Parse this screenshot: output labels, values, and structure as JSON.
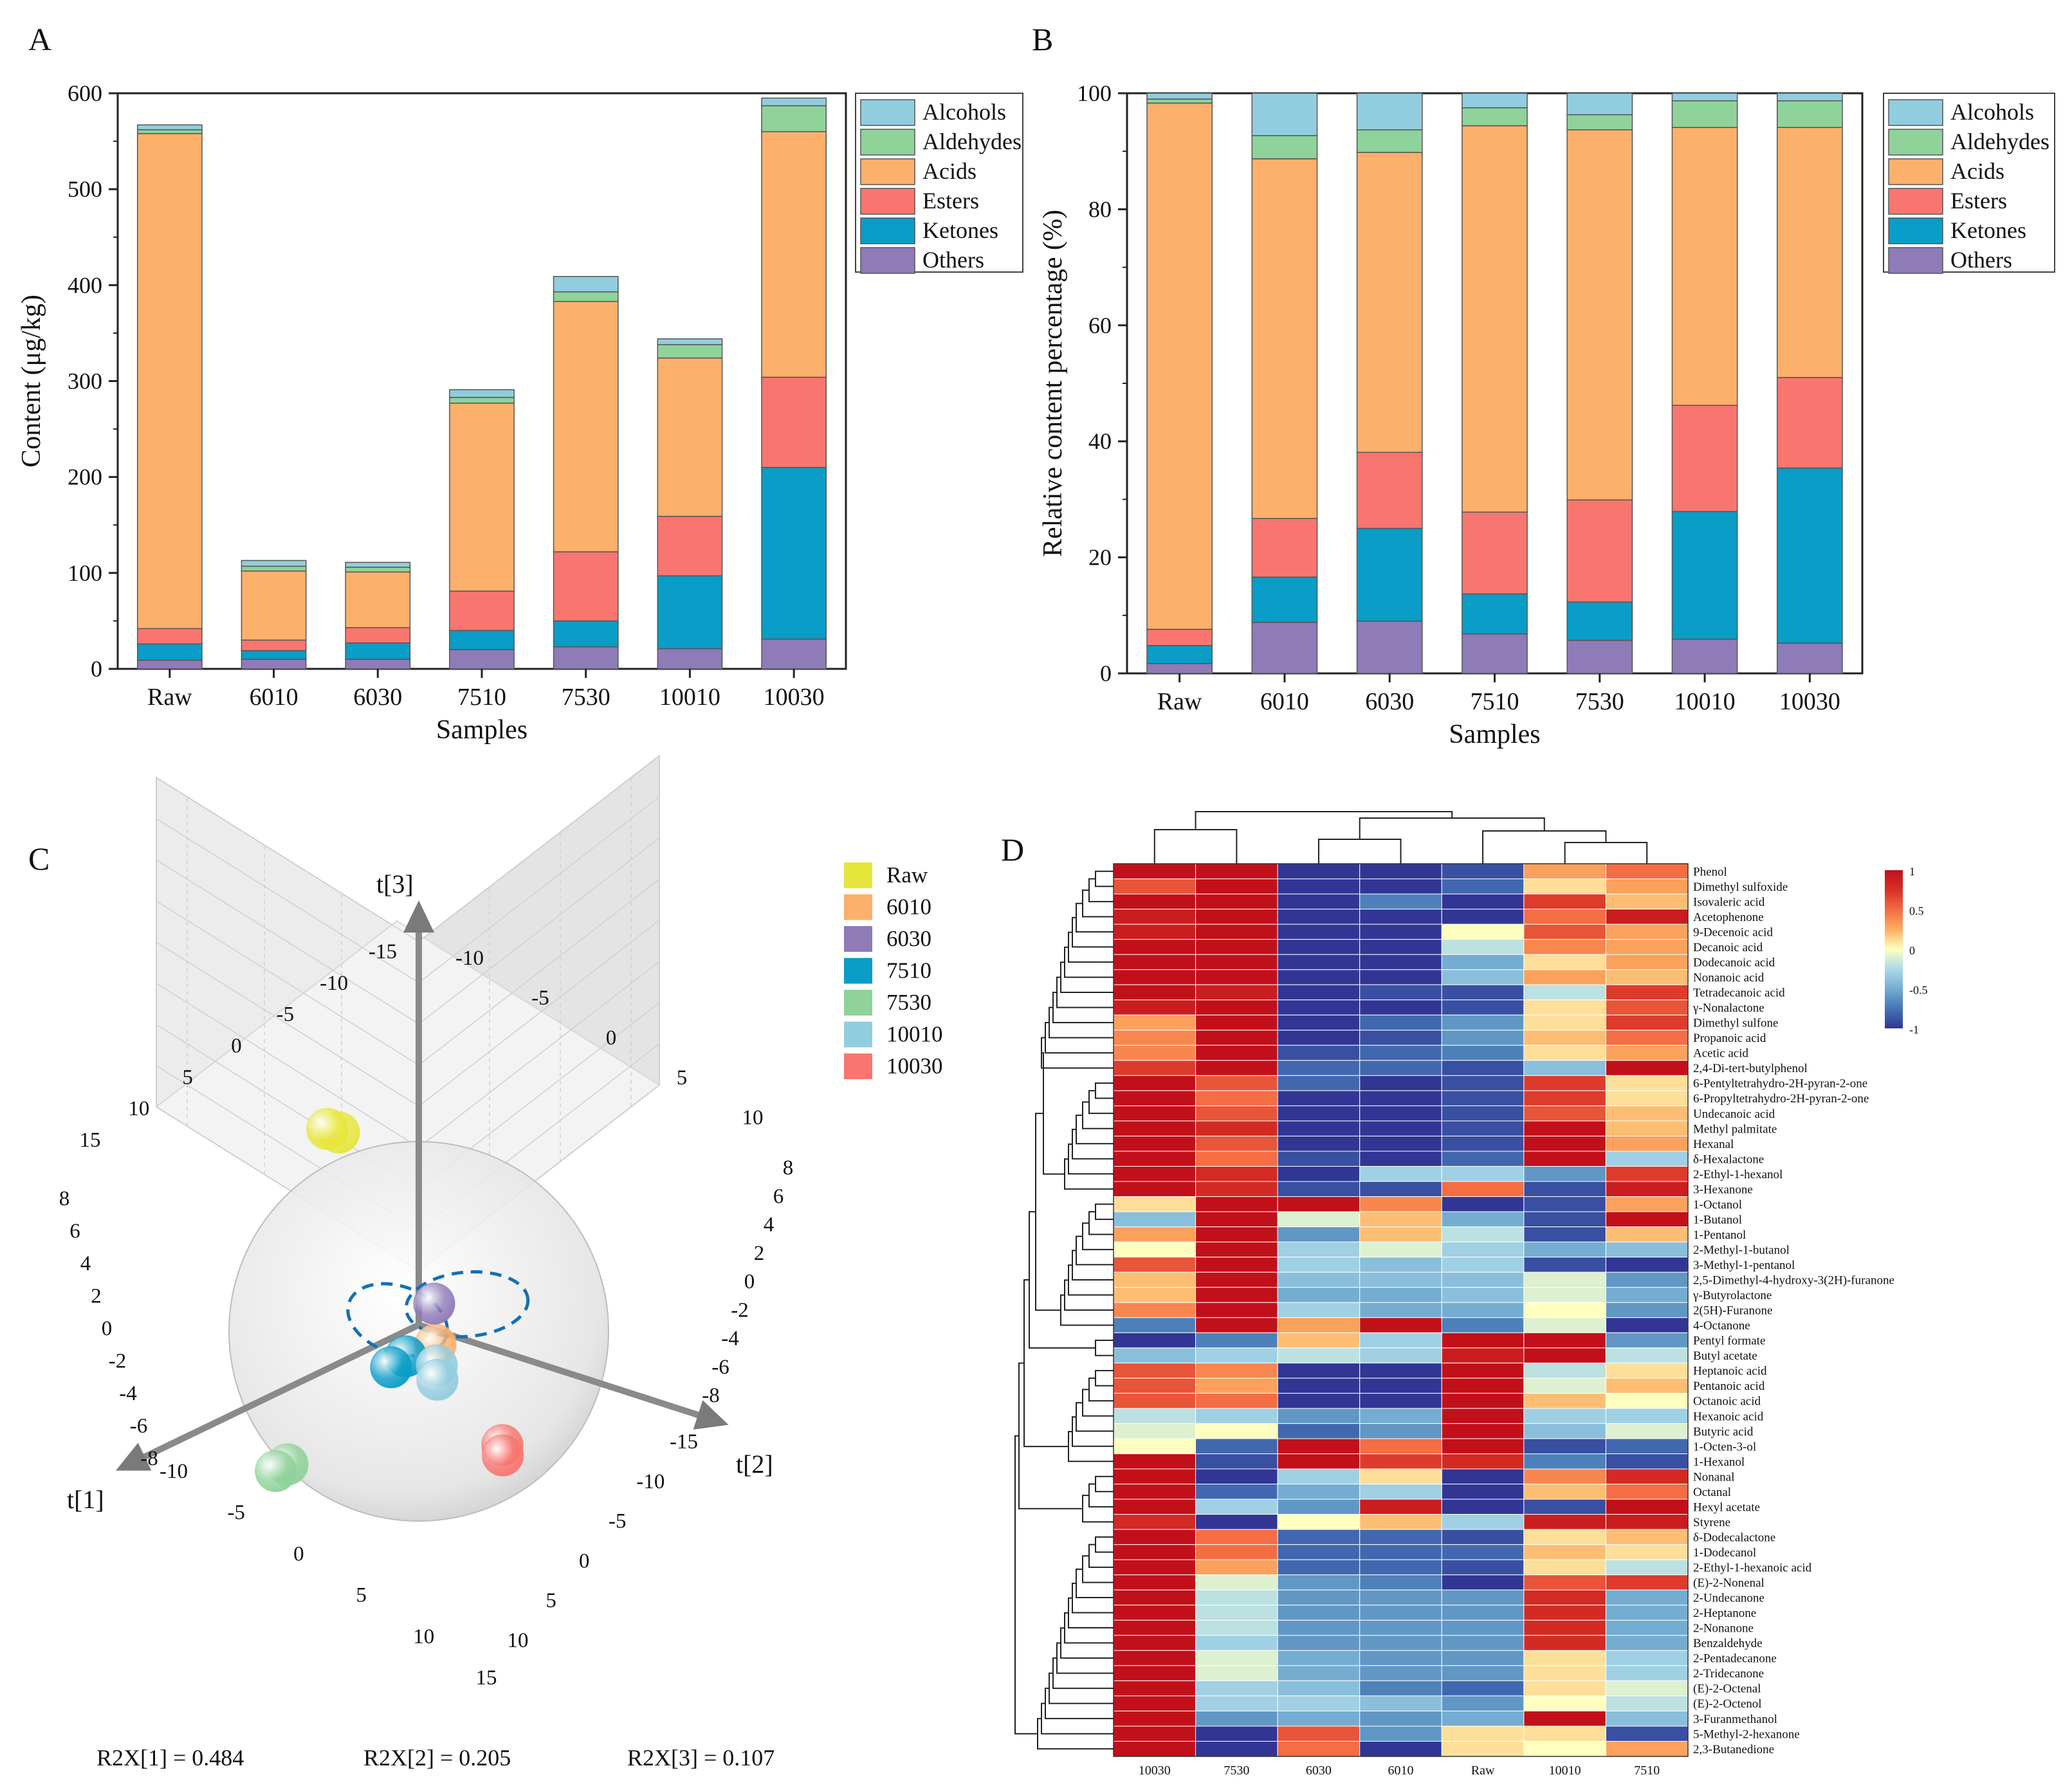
{
  "colors": {
    "Alcohols": "#92cddf",
    "Aldehydes": "#8fd29a",
    "Acids": "#fdb06b",
    "Esters": "#f97670",
    "Ketones": "#0a9dc7",
    "Others": "#8e7bb8"
  },
  "panel_labels": {
    "a": "A",
    "b": "B",
    "c": "C",
    "d": "D"
  },
  "chart_data": [
    {
      "type": "bar",
      "stacked": true,
      "panel": "A",
      "categories": [
        "Raw",
        "6010",
        "6030",
        "7510",
        "7530",
        "10010",
        "10030"
      ],
      "series": [
        {
          "name": "Others",
          "values": [
            9,
            10,
            10,
            20,
            23,
            21,
            31
          ]
        },
        {
          "name": "Ketones",
          "values": [
            17,
            9,
            17,
            20,
            27,
            76,
            179
          ]
        },
        {
          "name": "Esters",
          "values": [
            16,
            11,
            16,
            41,
            72,
            62,
            94
          ]
        },
        {
          "name": "Acids",
          "values": [
            516,
            72,
            58,
            196,
            261,
            165,
            256
          ]
        },
        {
          "name": "Aldehydes",
          "values": [
            4,
            5,
            5,
            6,
            10,
            14,
            27
          ]
        },
        {
          "name": "Alcohols",
          "values": [
            5,
            6,
            5,
            8,
            16,
            6,
            8
          ]
        }
      ],
      "legend_order": [
        "Alcohols",
        "Aldehydes",
        "Acids",
        "Esters",
        "Ketones",
        "Others"
      ],
      "title": "",
      "xlabel": "Samples",
      "ylabel": "Content (μg/kg)",
      "ylim": [
        0,
        600
      ],
      "yticks": [
        0,
        100,
        200,
        300,
        400,
        500,
        600
      ],
      "ytick_labels": [
        "0",
        "100",
        "200",
        "300",
        "400",
        "500",
        "600"
      ],
      "legend_position": "top-right"
    },
    {
      "type": "bar",
      "stacked": true,
      "panel": "B",
      "categories": [
        "Raw",
        "6010",
        "6030",
        "7510",
        "7530",
        "10010",
        "10030"
      ],
      "series": [
        {
          "name": "Others",
          "values": [
            1.7,
            8.8,
            9.0,
            6.8,
            5.7,
            5.9,
            5.2
          ]
        },
        {
          "name": "Ketones",
          "values": [
            3.1,
            7.8,
            16.0,
            6.9,
            6.6,
            22.0,
            30.2
          ]
        },
        {
          "name": "Esters",
          "values": [
            2.8,
            10.1,
            13.1,
            14.1,
            17.6,
            18.3,
            15.6
          ]
        },
        {
          "name": "Acids",
          "values": [
            90.7,
            62.0,
            51.7,
            66.6,
            63.8,
            47.9,
            43.1
          ]
        },
        {
          "name": "Aldehydes",
          "values": [
            0.7,
            4.0,
            3.9,
            3.1,
            2.6,
            4.6,
            4.6
          ]
        },
        {
          "name": "Alcohols",
          "values": [
            1.0,
            7.3,
            6.3,
            2.5,
            3.7,
            1.3,
            1.3
          ]
        }
      ],
      "legend_order": [
        "Alcohols",
        "Aldehydes",
        "Acids",
        "Esters",
        "Ketones",
        "Others"
      ],
      "title": "",
      "xlabel": "Samples",
      "ylabel": "Relative content percentage (%)",
      "ylim": [
        0,
        100
      ],
      "yticks": [
        0,
        20,
        40,
        60,
        80,
        100
      ],
      "ytick_labels": [
        "0",
        "20",
        "40",
        "60",
        "80",
        "100"
      ],
      "legend_position": "top-right"
    },
    {
      "type": "scatter",
      "subtype": "3d-pca-scores",
      "panel": "C",
      "axis_labels": {
        "x": "t[1]",
        "y": "t[2]",
        "z": "t[3]"
      },
      "series": [
        {
          "name": "Raw",
          "color": "#e6e63a",
          "points": [
            [
              -2,
              -7,
              5
            ],
            [
              -1.5,
              -7.3,
              5.3
            ]
          ]
        },
        {
          "name": "6010",
          "color": "#fdb06b",
          "points": [
            [
              1,
              2,
              0.5
            ]
          ]
        },
        {
          "name": "6030",
          "color": "#8e7bb8",
          "points": [
            [
              0,
              1,
              1.5
            ]
          ]
        },
        {
          "name": "7510",
          "color": "#0a9dc7",
          "points": [
            [
              2,
              1,
              0
            ],
            [
              2.5,
              0.5,
              -0.5
            ]
          ]
        },
        {
          "name": "7530",
          "color": "#8fd29a",
          "points": [
            [
              6,
              -3,
              -5
            ],
            [
              6.5,
              -3.3,
              -5.2
            ]
          ]
        },
        {
          "name": "10010",
          "color": "#92cddf",
          "points": [
            [
              2,
              3,
              0.5
            ],
            [
              2.5,
              3.5,
              0.3
            ]
          ]
        },
        {
          "name": "10030",
          "color": "#f97670",
          "points": [
            [
              5,
              10,
              1.5
            ],
            [
              5.3,
              10.3,
              1.3
            ]
          ]
        }
      ],
      "tick_labels": {
        "t1_ticks": [
          "-10",
          "-5",
          "0",
          "5",
          "10",
          "15"
        ],
        "t2_ticks": [
          "-15",
          "-10",
          "-5",
          "0",
          "5",
          "10"
        ],
        "t3_ticks": [
          "-8",
          "-6",
          "-4",
          "-2",
          "0",
          "2",
          "4",
          "6",
          "8"
        ],
        "left_back_ticks": [
          "15",
          "10",
          "5",
          "0",
          "-5",
          "-10",
          "-15"
        ],
        "top_back_ticks": [
          "-10",
          "-5",
          "0",
          "5",
          "10"
        ],
        "left_vertical_ticks": [
          "8",
          "6",
          "4",
          "2",
          "0",
          "-2",
          "-4",
          "-6",
          "-8"
        ],
        "right_vertical_ticks": [
          "8",
          "6",
          "4",
          "2",
          "0",
          "-2",
          "-4",
          "-6",
          "-8"
        ]
      },
      "stats": [
        {
          "label": "R2X[1] = 0.484"
        },
        {
          "label": "R2X[2] = 0.205"
        },
        {
          "label": "R2X[3] = 0.107"
        }
      ],
      "legend_position": "top-right"
    },
    {
      "type": "heatmap",
      "panel": "D",
      "columns": [
        "10030",
        "7530",
        "6030",
        "6010",
        "Raw",
        "10010",
        "7510"
      ],
      "rows": [
        "Phenol",
        "Dimethyl sulfoxide",
        "Isovaleric acid",
        "Acetophenone",
        "9-Decenoic acid",
        "Decanoic acid",
        "Dodecanoic acid",
        "Nonanoic acid",
        "Tetradecanoic acid",
        "γ-Nonalactone",
        "Dimethyl sulfone",
        "Propanoic acid",
        "Acetic acid",
        "2,4-Di-tert-butylphenol",
        "6-Pentyltetrahydro-2H-pyran-2-one",
        "6-Propyltetrahydro-2H-pyran-2-one",
        "Undecanoic acid",
        "Methyl palmitate",
        "Hexanal",
        "δ-Hexalactone",
        "2-Ethyl-1-hexanol",
        "3-Hexanone",
        "1-Octanol",
        "1-Butanol",
        "1-Pentanol",
        "2-Methyl-1-butanol",
        "3-Methyl-1-pentanol",
        "2,5-Dimethyl-4-hydroxy-3(2H)-furanone",
        "γ-Butyrolactone",
        "2(5H)-Furanone",
        "4-Octanone",
        "Pentyl formate",
        "Butyl acetate",
        "Heptanoic acid",
        "Pentanoic acid",
        "Octanoic acid",
        "Hexanoic acid",
        "Butyric acid",
        "1-Octen-3-ol",
        "1-Hexanol",
        "Nonanal",
        "Octanal",
        "Hexyl acetate",
        "Styrene",
        "δ-Dodecalactone",
        "1-Dodecanol",
        "2-Ethyl-1-hexanoic acid",
        "(E)-2-Nonenal",
        "2-Undecanone",
        "2-Heptanone",
        "2-Nonanone",
        "Benzaldehyde",
        "2-Pentadecanone",
        "2-Tridecanone",
        "(E)-2-Octenal",
        "(E)-2-Octenol",
        "3-Furanmethanol",
        "5-Methyl-2-hexanone",
        "2,3-Butanedione"
      ],
      "values": [
        [
          1,
          1,
          -1,
          -1,
          -0.9,
          0.3,
          0.5
        ],
        [
          0.6,
          1,
          -1,
          -1,
          -0.8,
          0.1,
          0.3
        ],
        [
          1,
          1,
          -1,
          -0.7,
          -1,
          0.7,
          0.2
        ],
        [
          0.9,
          1,
          -1,
          -1,
          -1,
          0.5,
          0.9
        ],
        [
          0.9,
          1,
          -1,
          -1,
          0,
          0.6,
          0.3
        ],
        [
          1,
          1,
          -1,
          -1,
          -0.2,
          0.4,
          0.3
        ],
        [
          1,
          1,
          -1,
          -1,
          -0.5,
          0.1,
          0.3
        ],
        [
          1,
          1,
          -1,
          -1,
          -0.4,
          0.3,
          0.2
        ],
        [
          1,
          0.9,
          -1,
          -0.9,
          -0.9,
          -0.2,
          0.7
        ],
        [
          0.9,
          1,
          -1,
          -1,
          -0.9,
          0.1,
          0.6
        ],
        [
          0.3,
          1,
          -1,
          -0.8,
          -0.6,
          0.1,
          0.7
        ],
        [
          0.4,
          1,
          -1,
          -0.9,
          -0.6,
          0.2,
          0.5
        ],
        [
          0.4,
          1,
          -0.9,
          -0.8,
          -0.7,
          0.1,
          0.3
        ],
        [
          0.7,
          1,
          -0.8,
          -0.8,
          -0.9,
          -0.4,
          1
        ],
        [
          1,
          0.6,
          -0.8,
          -1,
          -0.9,
          0.7,
          0.1
        ],
        [
          1,
          0.5,
          -1,
          -1,
          -0.9,
          0.7,
          0.1
        ],
        [
          1,
          0.6,
          -1,
          -1,
          -0.9,
          0.6,
          0.2
        ],
        [
          1,
          0.8,
          -1,
          -1,
          -0.9,
          1,
          0.2
        ],
        [
          1,
          0.6,
          -1,
          -1,
          -0.9,
          1,
          0.3
        ],
        [
          1,
          0.5,
          -0.9,
          -1,
          -0.8,
          1,
          -0.3
        ],
        [
          1,
          0.8,
          -1,
          -0.3,
          -0.3,
          -0.6,
          0.7
        ],
        [
          1,
          0.8,
          -0.9,
          -0.9,
          0.5,
          -0.9,
          0.9
        ],
        [
          0.1,
          1,
          1,
          0.4,
          -1,
          -0.9,
          0.3
        ],
        [
          -0.4,
          1,
          -0.1,
          0.2,
          -0.5,
          -0.9,
          1
        ],
        [
          0.3,
          1,
          -0.6,
          0.2,
          -0.2,
          -0.9,
          0.2
        ],
        [
          0,
          1,
          -0.3,
          -0.1,
          -0.3,
          -0.5,
          -0.4
        ],
        [
          0.6,
          1,
          -0.3,
          -0.4,
          -0.3,
          -0.9,
          -1
        ],
        [
          0.2,
          1,
          -0.4,
          -0.4,
          -0.4,
          -0.1,
          -0.6
        ],
        [
          0.2,
          1,
          -0.5,
          -0.5,
          -0.4,
          -0.1,
          -0.5
        ],
        [
          0.4,
          1,
          -0.3,
          -0.5,
          -0.5,
          0,
          -0.6
        ],
        [
          -0.7,
          1,
          0.3,
          1,
          -0.7,
          -0.1,
          -1
        ],
        [
          -1,
          -0.7,
          0.2,
          -0.3,
          1,
          1,
          -0.6
        ],
        [
          -0.4,
          -0.3,
          -0.2,
          -0.3,
          0.9,
          1,
          -0.2
        ],
        [
          0.6,
          0.4,
          -1,
          -1,
          1,
          -0.2,
          0.1
        ],
        [
          0.6,
          0.3,
          -1,
          -1,
          1,
          -0.1,
          0.2
        ],
        [
          0.6,
          0.5,
          -1,
          -1,
          1,
          0.2,
          0
        ],
        [
          -0.2,
          -0.3,
          -0.6,
          -0.5,
          1,
          -0.3,
          -0.3
        ],
        [
          -0.1,
          0,
          -0.8,
          -0.6,
          1,
          -0.4,
          -0.1
        ],
        [
          0,
          -0.8,
          1,
          0.5,
          1,
          -0.9,
          -0.8
        ],
        [
          1,
          -0.9,
          1,
          0.7,
          0.8,
          -0.7,
          -0.9
        ],
        [
          1,
          -1,
          -0.3,
          0.1,
          -1,
          0.4,
          0.8
        ],
        [
          1,
          -0.8,
          -0.5,
          -0.3,
          -1,
          0.2,
          0.5
        ],
        [
          1,
          -0.3,
          -0.6,
          0.9,
          -1,
          -0.9,
          1
        ],
        [
          0.8,
          -1,
          0,
          0.2,
          -0.3,
          0.9,
          0.9
        ],
        [
          1,
          0.5,
          -0.8,
          -0.8,
          -0.9,
          0.1,
          0.2
        ],
        [
          1,
          0.5,
          -0.8,
          -0.8,
          -0.8,
          0.2,
          0.1
        ],
        [
          1,
          0.3,
          -0.8,
          -0.8,
          -0.9,
          0.1,
          -0.2
        ],
        [
          1,
          -0.1,
          -0.6,
          -0.7,
          -1,
          0.6,
          0.7
        ],
        [
          1,
          -0.2,
          -0.6,
          -0.6,
          -0.6,
          0.8,
          -0.5
        ],
        [
          1,
          -0.2,
          -0.6,
          -0.6,
          -0.6,
          0.8,
          -0.5
        ],
        [
          1,
          -0.2,
          -0.6,
          -0.6,
          -0.6,
          0.8,
          -0.5
        ],
        [
          1,
          -0.3,
          -0.6,
          -0.6,
          -0.6,
          0.8,
          -0.5
        ],
        [
          1,
          -0.1,
          -0.5,
          -0.6,
          -0.6,
          0.1,
          -0.3
        ],
        [
          1,
          -0.1,
          -0.5,
          -0.6,
          -0.6,
          0.1,
          -0.3
        ],
        [
          1,
          -0.3,
          -0.4,
          -0.7,
          -0.8,
          0.1,
          -0.1
        ],
        [
          1,
          -0.3,
          -0.3,
          -0.4,
          -0.6,
          0,
          -0.2
        ],
        [
          1,
          -0.6,
          -0.5,
          -0.6,
          -0.5,
          1,
          -0.4
        ],
        [
          1,
          -1,
          0.6,
          -0.6,
          0.1,
          0.1,
          -0.9
        ],
        [
          1,
          -1,
          0.5,
          -1,
          0.1,
          0,
          0.3
        ]
      ],
      "colorbar": {
        "min": -1,
        "max": 1,
        "ticks": [
          "1",
          "0.5",
          "0",
          "-0.5",
          "-1"
        ]
      },
      "colormap": [
        "#313695",
        "#4575b4",
        "#74add1",
        "#abd9e9",
        "#ffffbf",
        "#fdae61",
        "#f46d43",
        "#d73027",
        "#c2101a"
      ]
    }
  ]
}
